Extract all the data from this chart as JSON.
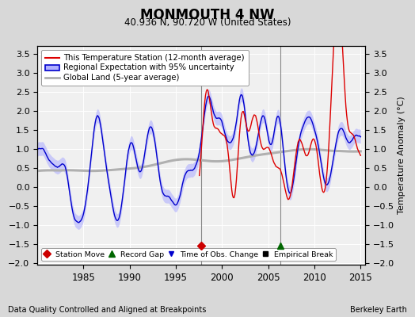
{
  "title": "MONMOUTH 4 NW",
  "subtitle": "40.936 N, 90.720 W (United States)",
  "ylabel_right": "Temperature Anomaly (°C)",
  "footer_left": "Data Quality Controlled and Aligned at Breakpoints",
  "footer_right": "Berkeley Earth",
  "xlim": [
    1980.0,
    2015.5
  ],
  "ylim": [
    -2.05,
    3.7
  ],
  "yticks": [
    -2,
    -1.5,
    -1,
    -0.5,
    0,
    0.5,
    1,
    1.5,
    2,
    2.5,
    3,
    3.5
  ],
  "xticks": [
    1985,
    1990,
    1995,
    2000,
    2005,
    2010,
    2015
  ],
  "legend_entries": [
    "This Temperature Station (12-month average)",
    "Regional Expectation with 95% uncertainty",
    "Global Land (5-year average)"
  ],
  "station_move_x": 1997.7,
  "station_move_y": -1.55,
  "record_gap_x": 2006.3,
  "record_gap_y": -1.55,
  "vline_x1": 1997.7,
  "vline_x2": 2006.3,
  "outer_bg": "#d8d8d8",
  "plot_bg": "#f0f0f0",
  "red_color": "#dd0000",
  "blue_color": "#0000cc",
  "blue_fill": "#b0b0ff",
  "gray_color": "#b0b0b0",
  "red_start_year": 1997.5,
  "seed": 42
}
